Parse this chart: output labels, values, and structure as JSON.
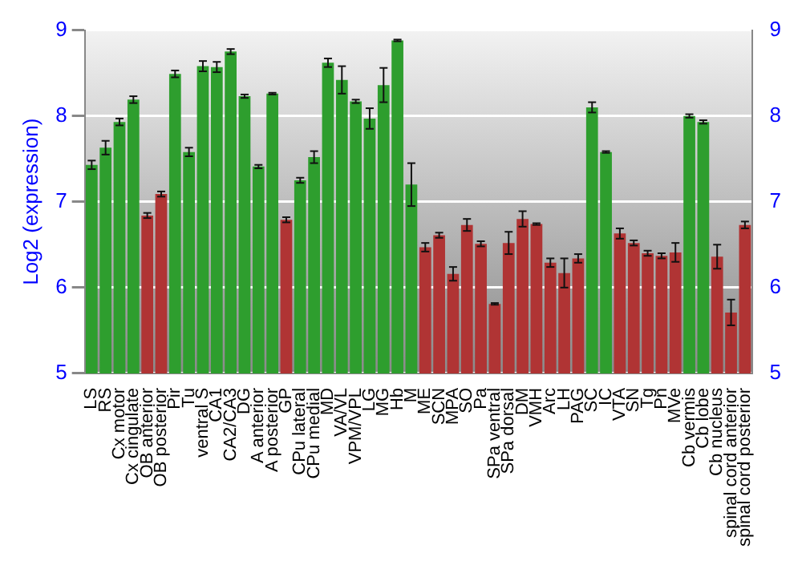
{
  "chart_data": {
    "type": "bar",
    "ylabel": "Log2 (expression)",
    "categories": [
      "LS",
      "RS",
      "Cx motor",
      "Cx cingulate",
      "OB anterior",
      "OB posterior",
      "Pir",
      "Tu",
      "ventral S",
      "CA1",
      "CA2/CA3",
      "DG",
      "A anterior",
      "A posterior",
      "GP",
      "CPu lateral",
      "CPu medial",
      "MD",
      "VA/VL",
      "VPM/VPL",
      "LG",
      "MG",
      "Hb",
      "M",
      "ME",
      "SCN",
      "MPA",
      "SO",
      "Pa",
      "SPa ventral",
      "SPa dorsal",
      "DM",
      "VMH",
      "Arc",
      "LH",
      "PAG",
      "SC",
      "IC",
      "VTA",
      "SN",
      "Tg",
      "Pn",
      "MVe",
      "Cb vermis",
      "Cb lobe",
      "Cb nucleus",
      "spinal cord anterior",
      "spinal cord posterior"
    ],
    "values": [
      7.43,
      7.63,
      7.93,
      8.19,
      6.84,
      7.09,
      8.49,
      7.58,
      8.58,
      8.57,
      8.75,
      8.23,
      7.41,
      8.26,
      6.79,
      7.25,
      7.52,
      8.62,
      8.42,
      8.17,
      7.97,
      8.36,
      8.88,
      7.2,
      6.47,
      6.61,
      6.16,
      6.73,
      6.51,
      5.81,
      6.52,
      6.8,
      6.74,
      6.29,
      6.17,
      6.34,
      8.1,
      7.58,
      6.63,
      6.52,
      6.4,
      6.37,
      6.41,
      8.0,
      7.93,
      6.36,
      5.71,
      6.73
    ],
    "errors": [
      0.05,
      0.08,
      0.04,
      0.04,
      0.03,
      0.03,
      0.04,
      0.05,
      0.06,
      0.06,
      0.03,
      0.02,
      0.02,
      0.01,
      0.03,
      0.03,
      0.07,
      0.05,
      0.16,
      0.02,
      0.12,
      0.2,
      0.01,
      0.25,
      0.05,
      0.03,
      0.08,
      0.07,
      0.03,
      0.01,
      0.13,
      0.09,
      0.01,
      0.05,
      0.17,
      0.05,
      0.06,
      0.01,
      0.06,
      0.03,
      0.03,
      0.03,
      0.11,
      0.02,
      0.02,
      0.14,
      0.15,
      0.04
    ],
    "colors": [
      "#2e9e2e",
      "#2e9e2e",
      "#2e9e2e",
      "#2e9e2e",
      "#b03434",
      "#b03434",
      "#2e9e2e",
      "#2e9e2e",
      "#2e9e2e",
      "#2e9e2e",
      "#2e9e2e",
      "#2e9e2e",
      "#2e9e2e",
      "#2e9e2e",
      "#b03434",
      "#2e9e2e",
      "#2e9e2e",
      "#2e9e2e",
      "#2e9e2e",
      "#2e9e2e",
      "#2e9e2e",
      "#2e9e2e",
      "#2e9e2e",
      "#2e9e2e",
      "#b03434",
      "#b03434",
      "#b03434",
      "#b03434",
      "#b03434",
      "#b03434",
      "#b03434",
      "#b03434",
      "#b03434",
      "#b03434",
      "#b03434",
      "#b03434",
      "#2e9e2e",
      "#2e9e2e",
      "#b03434",
      "#b03434",
      "#b03434",
      "#b03434",
      "#b03434",
      "#2e9e2e",
      "#2e9e2e",
      "#b03434",
      "#b03434",
      "#b03434"
    ],
    "ylim": [
      5,
      9
    ],
    "yticks": [
      5,
      6,
      7,
      8,
      9
    ],
    "y2lim": [
      5,
      9
    ],
    "y2ticks": [
      5,
      6,
      7,
      8,
      9
    ],
    "grid": "y",
    "legend": false
  }
}
